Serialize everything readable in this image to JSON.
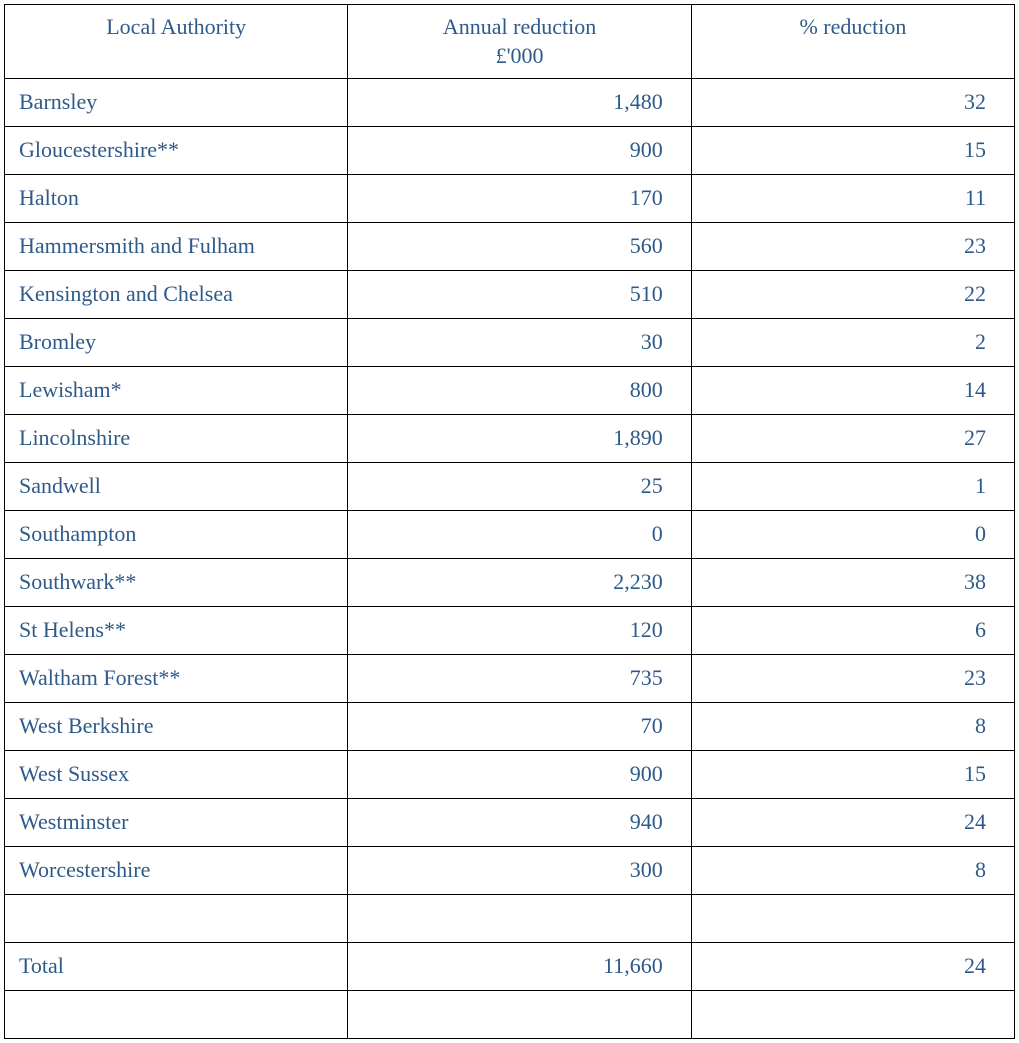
{
  "table": {
    "columns": {
      "authority": "Local Authority",
      "reduction_line1": "Annual reduction",
      "reduction_line2": "£'000",
      "percent": "% reduction"
    },
    "rows": [
      {
        "authority": "Barnsley",
        "reduction": "1,480",
        "percent": "32"
      },
      {
        "authority": "Gloucestershire**",
        "reduction": "900",
        "percent": "15"
      },
      {
        "authority": "Halton",
        "reduction": "170",
        "percent": "11"
      },
      {
        "authority": "Hammersmith and Fulham",
        "reduction": "560",
        "percent": "23"
      },
      {
        "authority": "Kensington and Chelsea",
        "reduction": "510",
        "percent": "22"
      },
      {
        "authority": "Bromley",
        "reduction": "30",
        "percent": "2"
      },
      {
        "authority": "Lewisham*",
        "reduction": "800",
        "percent": "14"
      },
      {
        "authority": "Lincolnshire",
        "reduction": "1,890",
        "percent": "27"
      },
      {
        "authority": "Sandwell",
        "reduction": "25",
        "percent": "1"
      },
      {
        "authority": "Southampton",
        "reduction": "0",
        "percent": "0"
      },
      {
        "authority": "Southwark**",
        "reduction": "2,230",
        "percent": "38"
      },
      {
        "authority": "St Helens**",
        "reduction": "120",
        "percent": "6"
      },
      {
        "authority": "Waltham Forest**",
        "reduction": "735",
        "percent": "23"
      },
      {
        "authority": "West Berkshire",
        "reduction": "70",
        "percent": "8"
      },
      {
        "authority": "West Sussex",
        "reduction": "900",
        "percent": "15"
      },
      {
        "authority": "Westminster",
        "reduction": "940",
        "percent": "24"
      },
      {
        "authority": "Worcestershire",
        "reduction": "300",
        "percent": "8"
      },
      {
        "authority": "",
        "reduction": "",
        "percent": ""
      },
      {
        "authority": "Total",
        "reduction": "11,660",
        "percent": "24"
      },
      {
        "authority": "",
        "reduction": "",
        "percent": ""
      }
    ],
    "text_color": "#2e5a8a",
    "border_color": "#000000",
    "background_color": "#ffffff",
    "font_family": "Georgia, serif",
    "header_fontsize": 22,
    "cell_fontsize": 22,
    "column_widths_pct": [
      34,
      34,
      32
    ]
  }
}
